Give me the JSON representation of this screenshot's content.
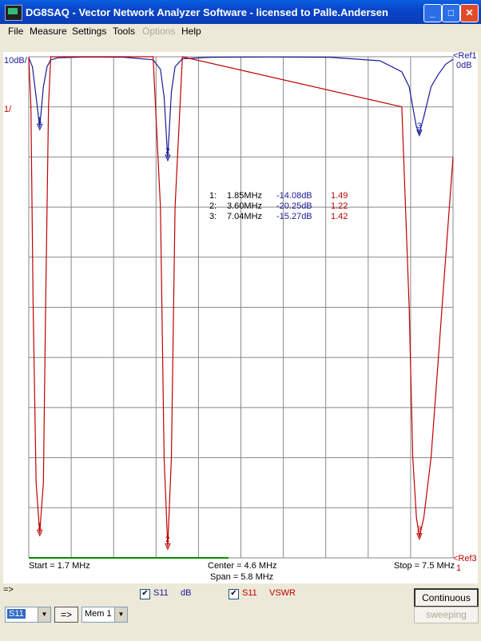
{
  "window": {
    "title": "DG8SAQ  -  Vector Network Analyzer Software  -  licensed to Palle.Andersen"
  },
  "menu": {
    "items": [
      "File",
      "Measure",
      "Settings",
      "Tools",
      "Options",
      "Help"
    ],
    "disabled": [
      "Options"
    ]
  },
  "scale": {
    "left_top": "10dB/",
    "left_second": "1/",
    "right_top1": "<Ref1",
    "right_top2": "0dB",
    "right_bottom1": "<Ref3",
    "right_bottom2": "1"
  },
  "freq": {
    "start": "Start = 1.7 MHz",
    "center": "Center = 4.6 MHz",
    "span": "Span = 5.8 MHz",
    "stop": "Stop = 7.5 MHz"
  },
  "markers": [
    {
      "num": "1:",
      "freq": "1.85MHz",
      "db": "-14.08dB",
      "vswr": "1.49"
    },
    {
      "num": "2:",
      "freq": "3.60MHz",
      "db": "-20.25dB",
      "vswr": "1.22"
    },
    {
      "num": "3:",
      "freq": "7.04MHz",
      "db": "-15.27dB",
      "vswr": "1.42"
    }
  ],
  "traces": {
    "t1_name": "S11",
    "t1_unit": "dB",
    "t1_checked": true,
    "t2_name": "S11",
    "t2_unit": "VSWR",
    "t2_checked": true,
    "color_blue": "#1a1a9a",
    "color_red": "#c00000"
  },
  "controls": {
    "arrow_label": "=>",
    "select_param": "S11",
    "go_button": "=>",
    "memory": "Mem 1",
    "continuous": "Continuous",
    "sweeping": "sweeping"
  },
  "chart_data": {
    "type": "line",
    "x_range_mhz": [
      1.7,
      7.5
    ],
    "grid": true,
    "series": [
      {
        "name": "S11",
        "unit": "dB",
        "scale": "10dB/div, ref 0dB",
        "x": [
          1.7,
          1.75,
          1.8,
          1.85,
          1.9,
          1.95,
          2.0,
          2.1,
          2.5,
          3.0,
          3.4,
          3.5,
          3.55,
          3.6,
          3.65,
          3.7,
          3.8,
          4.2,
          5.0,
          5.8,
          6.5,
          6.8,
          6.9,
          6.95,
          7.0,
          7.04,
          7.1,
          7.2,
          7.3,
          7.4,
          7.5
        ],
        "y": [
          -0.2,
          -2,
          -8,
          -14.08,
          -6,
          -2,
          -0.6,
          -0.2,
          -0.05,
          -0.1,
          -0.6,
          -2.5,
          -8,
          -20.25,
          -7,
          -2,
          -0.4,
          -0.1,
          -0.05,
          -0.1,
          -0.8,
          -3,
          -6,
          -10,
          -14,
          -15.27,
          -12,
          -6,
          -3.5,
          -1.5,
          -0.5
        ]
      },
      {
        "name": "S11",
        "unit": "VSWR",
        "scale": "1/div, ref 1",
        "x": [
          1.7,
          1.73,
          1.76,
          1.8,
          1.85,
          1.9,
          1.93,
          1.97,
          2.0,
          3.4,
          3.5,
          3.55,
          3.6,
          3.65,
          3.7,
          3.8,
          6.8,
          6.9,
          6.95,
          7.0,
          7.04,
          7.1,
          7.2,
          7.3,
          7.4,
          7.5
        ],
        "y": [
          11,
          10,
          6,
          2.5,
          1.49,
          2.5,
          6,
          10,
          11,
          11,
          8,
          3,
          1.22,
          3,
          8,
          11,
          10,
          6,
          3,
          1.8,
          1.42,
          1.8,
          3,
          5,
          7,
          9
        ]
      }
    ]
  }
}
